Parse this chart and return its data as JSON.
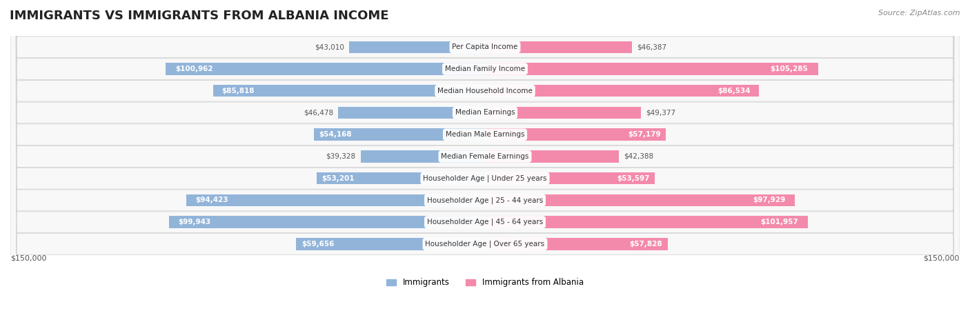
{
  "title": "IMMIGRANTS VS IMMIGRANTS FROM ALBANIA INCOME",
  "source": "Source: ZipAtlas.com",
  "categories": [
    "Per Capita Income",
    "Median Family Income",
    "Median Household Income",
    "Median Earnings",
    "Median Male Earnings",
    "Median Female Earnings",
    "Householder Age | Under 25 years",
    "Householder Age | 25 - 44 years",
    "Householder Age | 45 - 64 years",
    "Householder Age | Over 65 years"
  ],
  "immigrants": [
    43010,
    100962,
    85818,
    46478,
    54168,
    39328,
    53201,
    94423,
    99943,
    59656
  ],
  "albania": [
    46387,
    105285,
    86534,
    49377,
    57179,
    42388,
    53597,
    97929,
    101957,
    57828
  ],
  "immigrants_labels": [
    "$43,010",
    "$100,962",
    "$85,818",
    "$46,478",
    "$54,168",
    "$39,328",
    "$53,201",
    "$94,423",
    "$99,943",
    "$59,656"
  ],
  "albania_labels": [
    "$46,387",
    "$105,285",
    "$86,534",
    "$49,377",
    "$57,179",
    "$42,388",
    "$53,597",
    "$97,929",
    "$101,957",
    "$57,828"
  ],
  "immigrants_color": "#92b4d9",
  "albania_color": "#f48aab",
  "bar_bg_color": "#f0f0f0",
  "row_bg_colors": [
    "#f7f7f7",
    "#f7f7f7"
  ],
  "max_value": 150000,
  "xlabel_left": "$150,000",
  "xlabel_right": "$150,000",
  "legend_immigrants": "Immigrants",
  "legend_albania": "Immigrants from Albania",
  "title_fontsize": 13,
  "label_fontsize": 8.5,
  "bar_height": 0.55
}
